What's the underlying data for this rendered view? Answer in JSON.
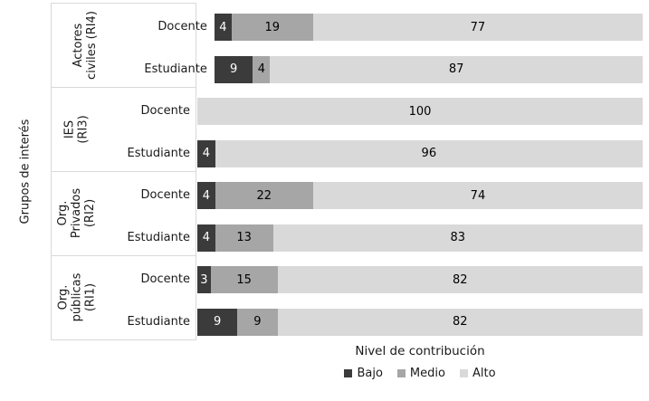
{
  "chart_data": {
    "type": "bar",
    "orientation": "horizontal-stacked",
    "title": "",
    "xlabel": "Nivel de contribución",
    "ylabel": "Grupos de interés",
    "xlim": [
      0,
      100
    ],
    "grid": false,
    "legend_position": "bottom",
    "axis_line_color": "#d9d9d9",
    "background": "#ffffff",
    "series_meta": [
      {
        "key": "bajo",
        "name": "Bajo",
        "color": "#3b3b3b",
        "label_color": "#ffffff"
      },
      {
        "key": "medio",
        "name": "Medio",
        "color": "#a6a6a6",
        "label_color": "#000000"
      },
      {
        "key": "alto",
        "name": "Alto",
        "color": "#d9d9d9",
        "label_color": "#000000"
      }
    ],
    "groups": [
      {
        "label": "Actores civiles (RI4)",
        "label_lines": "Actores\nciviles (RI4)",
        "rows": [
          {
            "label": "Docente",
            "values": {
              "bajo": 4,
              "medio": 19,
              "alto": 77
            }
          },
          {
            "label": "Estudiante",
            "values": {
              "bajo": 9,
              "medio": 4,
              "alto": 87
            }
          }
        ]
      },
      {
        "label": "IES (RI3)",
        "label_lines": "IES\n(RI3)",
        "rows": [
          {
            "label": "Docente",
            "values": {
              "bajo": 0,
              "medio": 0,
              "alto": 100
            }
          },
          {
            "label": "Estudiante",
            "values": {
              "bajo": 4,
              "medio": 0,
              "alto": 96
            }
          }
        ]
      },
      {
        "label": "Org. Privados (RI2)",
        "label_lines": "Org.\nPrivados\n(RI2)",
        "rows": [
          {
            "label": "Docente",
            "values": {
              "bajo": 4,
              "medio": 22,
              "alto": 74
            }
          },
          {
            "label": "Estudiante",
            "values": {
              "bajo": 4,
              "medio": 13,
              "alto": 83
            }
          }
        ]
      },
      {
        "label": "Org. públicas (RI1)",
        "label_lines": "Org.\npúblicas\n(RI1)",
        "rows": [
          {
            "label": "Docente",
            "values": {
              "bajo": 3,
              "medio": 15,
              "alto": 82
            }
          },
          {
            "label": "Estudiante",
            "values": {
              "bajo": 9,
              "medio": 9,
              "alto": 82
            }
          }
        ]
      }
    ]
  }
}
